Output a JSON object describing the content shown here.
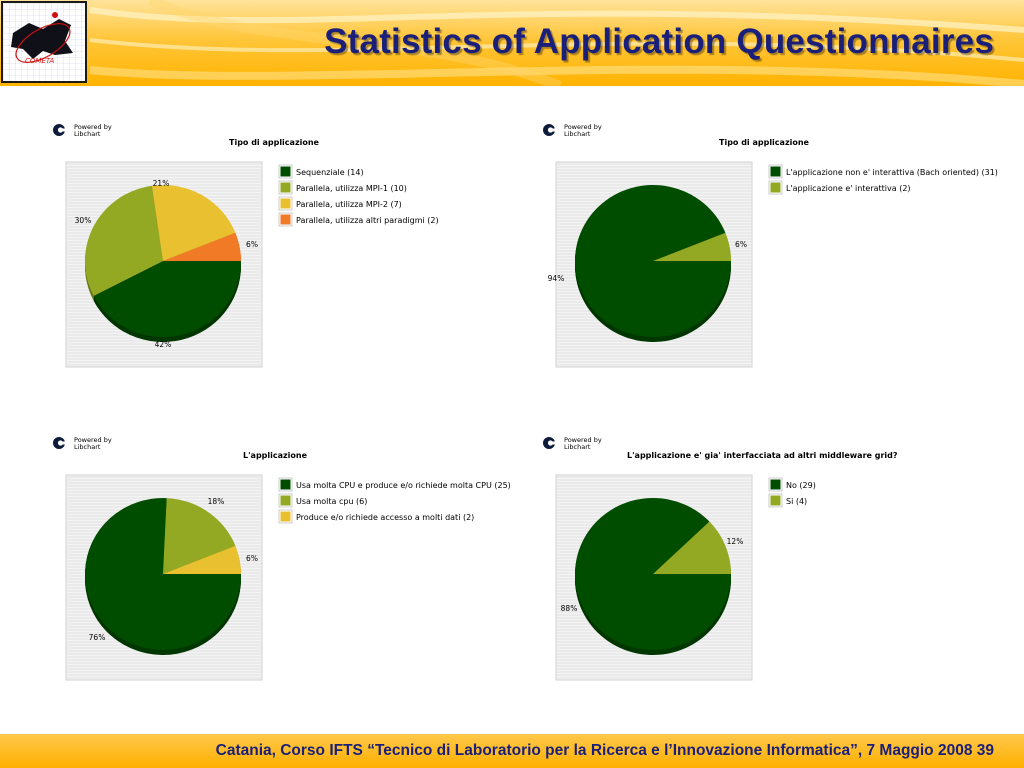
{
  "header": {
    "title": "Statistics of Application Questionnaires"
  },
  "footer": {
    "text": "Catania, Corso IFTS “Tecnico di Laboratorio per la Ricerca e l’Innovazione Informatica”, 7 Maggio 2008 39"
  },
  "libchart_badge": {
    "line1": "Powered by",
    "line2": "Libchart"
  },
  "colors": {
    "dark_green": "#004d00",
    "olive": "#94a923",
    "yellow": "#e8c030",
    "orange": "#f07a26",
    "navy": "#1a1f7a"
  },
  "chart_data": [
    {
      "type": "pie",
      "title": "Tipo di applicazione",
      "slices": [
        {
          "label": "Sequenziale (14)",
          "value": 14,
          "percent_label": "42%",
          "color": "#004d00"
        },
        {
          "label": "Parallela, utilizza MPI-1 (10)",
          "value": 10,
          "percent_label": "30%",
          "color": "#94a923"
        },
        {
          "label": "Parallela, utilizza MPI-2 (7)",
          "value": 7,
          "percent_label": "21%",
          "color": "#e8c030"
        },
        {
          "label": "Parallela, utilizza altri paradigmi (2)",
          "value": 2,
          "percent_label": "6%",
          "color": "#f07a26"
        }
      ]
    },
    {
      "type": "pie",
      "title": "Tipo di applicazione",
      "slices": [
        {
          "label": "L'applicazione non e' interattiva (Bach oriented) (31)",
          "value": 31,
          "percent_label": "94%",
          "color": "#004d00"
        },
        {
          "label": "L'applicazione e' interattiva (2)",
          "value": 2,
          "percent_label": "6%",
          "color": "#94a923"
        }
      ]
    },
    {
      "type": "pie",
      "title": "L'applicazione",
      "slices": [
        {
          "label": "Usa molta CPU e produce e/o richiede molta CPU (25)",
          "value": 25,
          "percent_label": "76%",
          "color": "#004d00"
        },
        {
          "label": "Usa molta cpu (6)",
          "value": 6,
          "percent_label": "18%",
          "color": "#94a923"
        },
        {
          "label": "Produce e/o richiede accesso a molti dati (2)",
          "value": 2,
          "percent_label": "6%",
          "color": "#e8c030"
        }
      ]
    },
    {
      "type": "pie",
      "title": "L'applicazione e' gia' interfacciata ad altri middleware grid?",
      "slices": [
        {
          "label": "No (29)",
          "value": 29,
          "percent_label": "88%",
          "color": "#004d00"
        },
        {
          "label": "Si (4)",
          "value": 4,
          "percent_label": "12%",
          "color": "#94a923"
        }
      ]
    }
  ]
}
